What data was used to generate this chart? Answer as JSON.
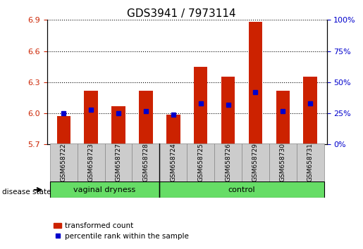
{
  "title": "GDS3941 / 7973114",
  "samples": [
    "GSM658722",
    "GSM658723",
    "GSM658727",
    "GSM658728",
    "GSM658724",
    "GSM658725",
    "GSM658726",
    "GSM658729",
    "GSM658730",
    "GSM658731"
  ],
  "transformed_count": [
    5.97,
    6.22,
    6.07,
    6.22,
    5.99,
    6.45,
    6.35,
    6.88,
    6.22,
    6.35
  ],
  "percentile_rank": [
    25,
    28,
    25,
    27,
    24,
    33,
    32,
    42,
    27,
    33
  ],
  "ylim_left": [
    5.7,
    6.9
  ],
  "ylim_right": [
    0,
    100
  ],
  "yticks_left": [
    5.7,
    6.0,
    6.3,
    6.6,
    6.9
  ],
  "yticks_right": [
    0,
    25,
    50,
    75,
    100
  ],
  "bar_color": "#cc2200",
  "dot_color": "#0000cc",
  "bg_plot": "#ffffff",
  "tick_label_color_left": "#cc2200",
  "tick_label_color_right": "#0000cc",
  "disease_groups": [
    {
      "label": "vaginal dryness",
      "start": 0,
      "end": 4
    },
    {
      "label": "control",
      "start": 4,
      "end": 10
    }
  ],
  "green_color": "#66dd66",
  "xlabel_left": "disease state",
  "legend_items": [
    "transformed count",
    "percentile rank within the sample"
  ],
  "bar_width": 0.5,
  "bar_bottom": 5.7
}
